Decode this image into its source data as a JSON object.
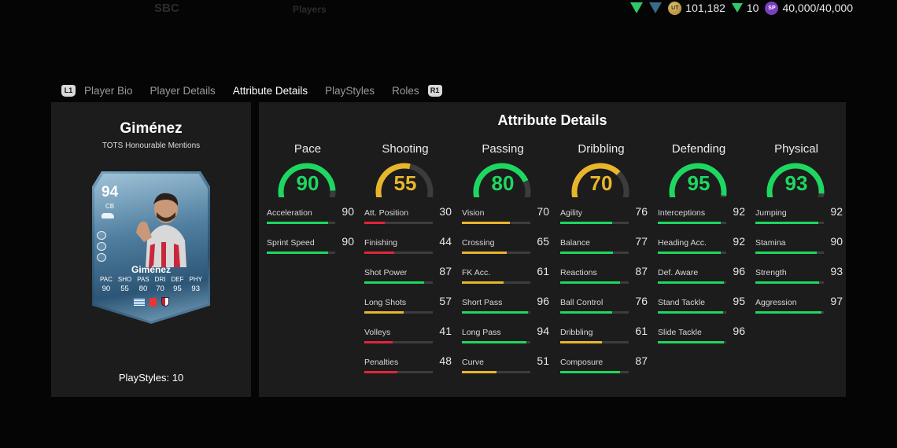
{
  "topbar": {
    "nav_faded": [
      "SBC",
      "Players"
    ],
    "coins": "101,182",
    "coins_icon": "coin-icon",
    "tokens": "10",
    "sp": "40,000/40,000",
    "sp_icon_label": "SP",
    "coin_icon_label": "UT"
  },
  "tabs": {
    "left_bumper": "L1",
    "right_bumper": "R1",
    "items": [
      "Player Bio",
      "Player Details",
      "Attribute Details",
      "PlayStyles",
      "Roles"
    ],
    "active": "Attribute Details"
  },
  "player": {
    "name": "Giménez",
    "subtitle": "TOTS Honourable Mentions",
    "card": {
      "rating": "94",
      "position": "CB",
      "name": "Giménez",
      "stat_labels": [
        "PAC",
        "SHO",
        "PAS",
        "DRI",
        "DEF",
        "PHY"
      ],
      "stat_values": [
        "90",
        "55",
        "80",
        "70",
        "95",
        "93"
      ]
    },
    "playstyles": "PlayStyles: 10"
  },
  "attributes": {
    "title": "Attribute Details",
    "colors": {
      "green": "#1ed760",
      "yellow": "#e8b62a",
      "red": "#e0263c",
      "track": "#3c3c3c"
    },
    "categories": [
      {
        "name": "Pace",
        "value": "90",
        "color": "green",
        "stats": [
          {
            "label": "Acceleration",
            "value": "90",
            "color": "green"
          },
          {
            "label": "Sprint Speed",
            "value": "90",
            "color": "green"
          }
        ]
      },
      {
        "name": "Shooting",
        "value": "55",
        "color": "yellow",
        "stats": [
          {
            "label": "Att. Position",
            "value": "30",
            "color": "red"
          },
          {
            "label": "Finishing",
            "value": "44",
            "color": "red"
          },
          {
            "label": "Shot Power",
            "value": "87",
            "color": "green"
          },
          {
            "label": "Long Shots",
            "value": "57",
            "color": "yellow"
          },
          {
            "label": "Volleys",
            "value": "41",
            "color": "red"
          },
          {
            "label": "Penalties",
            "value": "48",
            "color": "red"
          }
        ]
      },
      {
        "name": "Passing",
        "value": "80",
        "color": "green",
        "stats": [
          {
            "label": "Vision",
            "value": "70",
            "color": "yellow"
          },
          {
            "label": "Crossing",
            "value": "65",
            "color": "yellow"
          },
          {
            "label": "FK Acc.",
            "value": "61",
            "color": "yellow"
          },
          {
            "label": "Short Pass",
            "value": "96",
            "color": "green"
          },
          {
            "label": "Long Pass",
            "value": "94",
            "color": "green"
          },
          {
            "label": "Curve",
            "value": "51",
            "color": "yellow"
          }
        ]
      },
      {
        "name": "Dribbling",
        "value": "70",
        "color": "yellow",
        "stats": [
          {
            "label": "Agility",
            "value": "76",
            "color": "green"
          },
          {
            "label": "Balance",
            "value": "77",
            "color": "green"
          },
          {
            "label": "Reactions",
            "value": "87",
            "color": "green"
          },
          {
            "label": "Ball Control",
            "value": "76",
            "color": "green"
          },
          {
            "label": "Dribbling",
            "value": "61",
            "color": "yellow"
          },
          {
            "label": "Composure",
            "value": "87",
            "color": "green"
          }
        ]
      },
      {
        "name": "Defending",
        "value": "95",
        "color": "green",
        "stats": [
          {
            "label": "Interceptions",
            "value": "92",
            "color": "green"
          },
          {
            "label": "Heading Acc.",
            "value": "92",
            "color": "green"
          },
          {
            "label": "Def. Aware",
            "value": "96",
            "color": "green"
          },
          {
            "label": "Stand Tackle",
            "value": "95",
            "color": "green"
          },
          {
            "label": "Slide Tackle",
            "value": "96",
            "color": "green"
          }
        ]
      },
      {
        "name": "Physical",
        "value": "93",
        "color": "green",
        "stats": [
          {
            "label": "Jumping",
            "value": "92",
            "color": "green"
          },
          {
            "label": "Stamina",
            "value": "90",
            "color": "green"
          },
          {
            "label": "Strength",
            "value": "93",
            "color": "green"
          },
          {
            "label": "Aggression",
            "value": "97",
            "color": "green"
          }
        ]
      }
    ]
  }
}
